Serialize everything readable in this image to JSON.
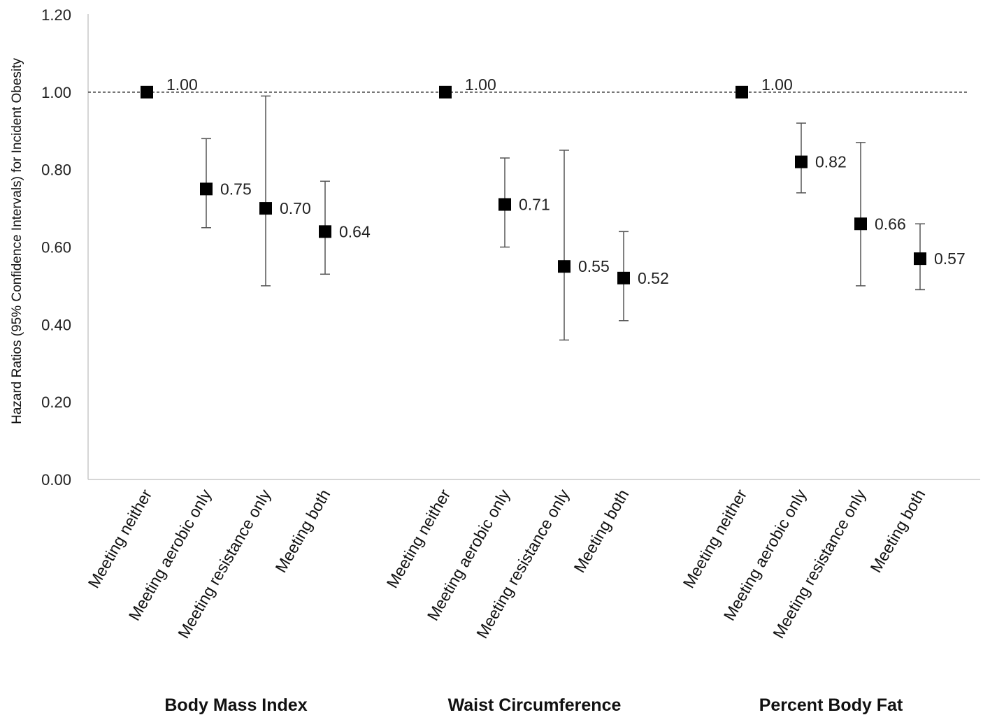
{
  "chart_data": {
    "type": "scatter",
    "ylabel": "Hazard Ratios (95% Confidence Intervals) for Incident Obesity",
    "ylim": [
      0,
      1.2
    ],
    "yticks": [
      "0.00",
      "0.20",
      "0.40",
      "0.60",
      "0.80",
      "1.00",
      "1.20"
    ],
    "reference_line": 1.0,
    "groups": [
      {
        "name": "Body Mass Index",
        "points": [
          {
            "category": "Meeting neither",
            "value": 1.0,
            "lower": 1.0,
            "upper": 1.0,
            "label": "1.00"
          },
          {
            "category": "Meeting aerobic only",
            "value": 0.75,
            "lower": 0.65,
            "upper": 0.88,
            "label": "0.75"
          },
          {
            "category": "Meeting resistance only",
            "value": 0.7,
            "lower": 0.5,
            "upper": 0.99,
            "label": "0.70"
          },
          {
            "category": "Meeting both",
            "value": 0.64,
            "lower": 0.53,
            "upper": 0.77,
            "label": "0.64"
          }
        ]
      },
      {
        "name": "Waist Circumference",
        "points": [
          {
            "category": "Meeting neither",
            "value": 1.0,
            "lower": 1.0,
            "upper": 1.0,
            "label": "1.00"
          },
          {
            "category": "Meeting aerobic only",
            "value": 0.71,
            "lower": 0.6,
            "upper": 0.83,
            "label": "0.71"
          },
          {
            "category": "Meeting resistance only",
            "value": 0.55,
            "lower": 0.36,
            "upper": 0.85,
            "label": "0.55"
          },
          {
            "category": "Meeting both",
            "value": 0.52,
            "lower": 0.41,
            "upper": 0.64,
            "label": "0.52"
          }
        ]
      },
      {
        "name": "Percent Body Fat",
        "points": [
          {
            "category": "Meeting neither",
            "value": 1.0,
            "lower": 1.0,
            "upper": 1.0,
            "label": "1.00"
          },
          {
            "category": "Meeting aerobic only",
            "value": 0.82,
            "lower": 0.74,
            "upper": 0.92,
            "label": "0.82"
          },
          {
            "category": "Meeting resistance only",
            "value": 0.66,
            "lower": 0.5,
            "upper": 0.87,
            "label": "0.66"
          },
          {
            "category": "Meeting both",
            "value": 0.57,
            "lower": 0.49,
            "upper": 0.66,
            "label": "0.57"
          }
        ]
      }
    ],
    "grid": false,
    "legend": "none"
  }
}
